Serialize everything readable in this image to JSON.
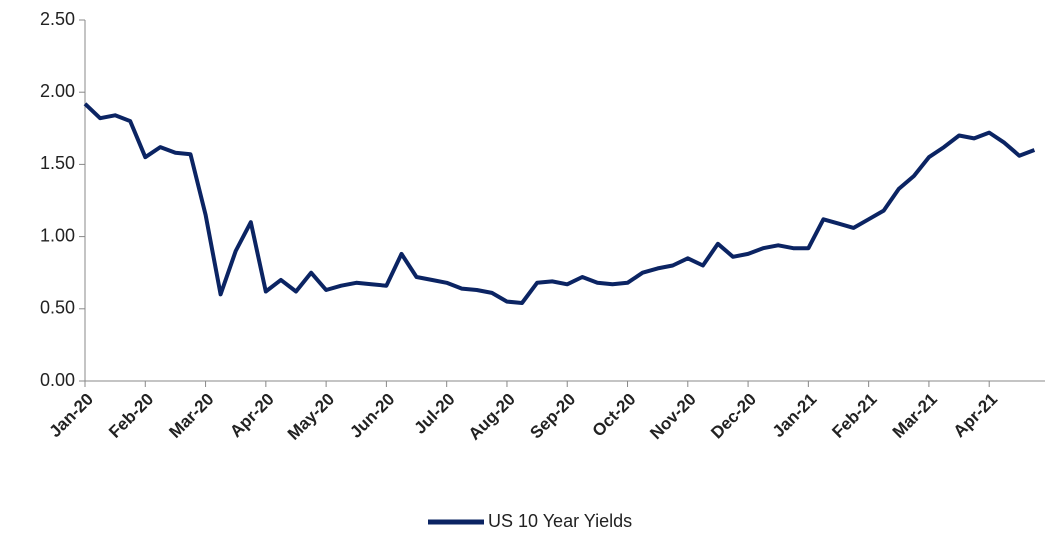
{
  "chart_data": {
    "type": "line",
    "categories": [
      "Jan-20",
      null,
      null,
      null,
      "Feb-20",
      null,
      null,
      null,
      "Mar-20",
      null,
      null,
      null,
      "Apr-20",
      null,
      null,
      null,
      "May-20",
      null,
      null,
      null,
      "Jun-20",
      null,
      null,
      null,
      "Jul-20",
      null,
      null,
      null,
      "Aug-20",
      null,
      null,
      null,
      "Sep-20",
      null,
      null,
      null,
      "Oct-20",
      null,
      null,
      null,
      "Nov-20",
      null,
      null,
      null,
      "Dec-20",
      null,
      null,
      null,
      "Jan-21",
      null,
      null,
      null,
      "Feb-21",
      null,
      null,
      null,
      "Mar-21",
      null,
      null,
      null,
      "Apr-21",
      null,
      null,
      null
    ],
    "series": [
      {
        "name": "US 10 Year Yields",
        "color": "#0b2463",
        "values": [
          1.92,
          1.82,
          1.84,
          1.8,
          1.55,
          1.62,
          1.58,
          1.57,
          1.15,
          0.6,
          0.9,
          1.1,
          0.62,
          0.7,
          0.62,
          0.75,
          0.63,
          0.66,
          0.68,
          0.67,
          0.66,
          0.88,
          0.72,
          0.7,
          0.68,
          0.64,
          0.63,
          0.61,
          0.55,
          0.54,
          0.68,
          0.69,
          0.67,
          0.72,
          0.68,
          0.67,
          0.68,
          0.75,
          0.78,
          0.8,
          0.85,
          0.8,
          0.95,
          0.86,
          0.88,
          0.92,
          0.94,
          0.92,
          0.92,
          1.12,
          1.09,
          1.06,
          1.12,
          1.18,
          1.33,
          1.42,
          1.55,
          1.62,
          1.7,
          1.68,
          1.72,
          1.65,
          1.56,
          1.6
        ]
      }
    ],
    "ylim": [
      0,
      2.5
    ],
    "yticks": [
      {
        "value": 0,
        "label": "0.00"
      },
      {
        "value": 0.5,
        "label": "0.50"
      },
      {
        "value": 1,
        "label": "1.00"
      },
      {
        "value": 1.5,
        "label": "1.50"
      },
      {
        "value": 2,
        "label": "2.00"
      },
      {
        "value": 2.5,
        "label": "2.50"
      }
    ],
    "grid": false,
    "legend": "bottom"
  }
}
